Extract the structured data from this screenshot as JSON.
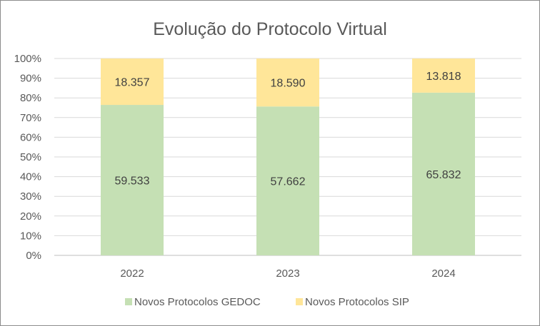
{
  "chart_data": {
    "type": "bar",
    "stacked": "percent",
    "title": "Evolução do Protocolo Virtual",
    "categories": [
      "2022",
      "2023",
      "2024"
    ],
    "series": [
      {
        "name": "Novos Protocolos GEDOC",
        "values": [
          59533,
          57662,
          65832
        ],
        "labels": [
          "59.533",
          "57.662",
          "65.832"
        ],
        "color": "#c5e0b4"
      },
      {
        "name": "Novos Protocolos SIP",
        "values": [
          18357,
          18590,
          13818
        ],
        "labels": [
          "18.357",
          "18.590",
          "13.818"
        ],
        "color": "#ffe699"
      }
    ],
    "yticks": [
      "0%",
      "10%",
      "20%",
      "30%",
      "40%",
      "50%",
      "60%",
      "70%",
      "80%",
      "90%",
      "100%"
    ],
    "ylim": [
      0,
      1
    ],
    "grid": true,
    "gridColor": "#d9d9d9",
    "legend": "bottom"
  }
}
